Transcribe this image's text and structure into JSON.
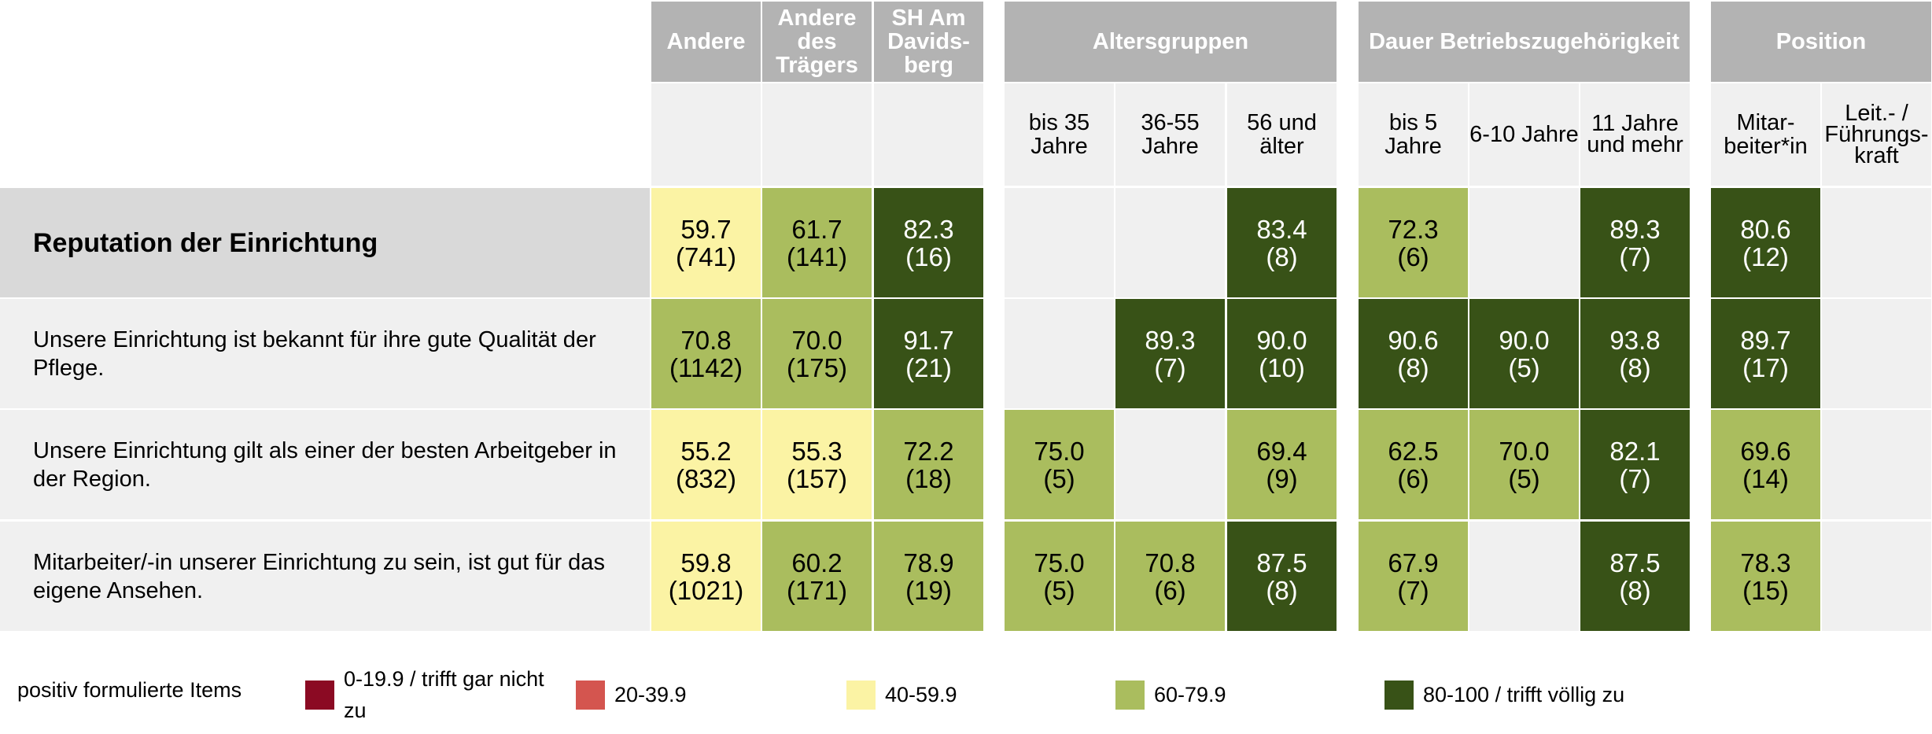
{
  "chart_data": {
    "type": "table",
    "column_groups": [
      {
        "label": "Andere",
        "columns": [
          {
            "label": ""
          }
        ]
      },
      {
        "label": "Andere des Trägers",
        "columns": [
          {
            "label": ""
          }
        ]
      },
      {
        "label": "SH Am Davids- berg",
        "columns": [
          {
            "label": ""
          }
        ]
      },
      {
        "label": "Altersgruppen",
        "columns": [
          {
            "label": "bis 35 Jahre"
          },
          {
            "label": "36-55 Jahre"
          },
          {
            "label": "56 und älter"
          }
        ]
      },
      {
        "label": "Dauer Betriebszugehörigkeit",
        "columns": [
          {
            "label": "bis 5 Jahre"
          },
          {
            "label": "6-10 Jahre"
          },
          {
            "label": "11 Jahre und mehr"
          }
        ]
      },
      {
        "label": "Position",
        "columns": [
          {
            "label": "Mitar- beiter*in"
          },
          {
            "label": "Leit.- / Führungs- kraft"
          }
        ]
      }
    ],
    "rows": [
      {
        "label": "Reputation der Einrichtung",
        "bold": true,
        "values": [
          59.7,
          61.7,
          82.3,
          null,
          null,
          83.4,
          72.3,
          null,
          89.3,
          80.6,
          null
        ],
        "counts": [
          741,
          141,
          16,
          null,
          null,
          8,
          6,
          null,
          7,
          12,
          null
        ]
      },
      {
        "label": "Unsere Einrichtung ist bekannt für ihre gute Qualität der Pflege.",
        "bold": false,
        "values": [
          70.8,
          70.0,
          91.7,
          null,
          89.3,
          90.0,
          90.6,
          90.0,
          93.8,
          89.7,
          null
        ],
        "counts": [
          1142,
          175,
          21,
          null,
          7,
          10,
          8,
          5,
          8,
          17,
          null
        ]
      },
      {
        "label": "Unsere Einrichtung gilt als einer der besten Arbeitgeber in der Region.",
        "bold": false,
        "values": [
          55.2,
          55.3,
          72.2,
          75.0,
          null,
          69.4,
          62.5,
          70.0,
          82.1,
          69.6,
          null
        ],
        "counts": [
          832,
          157,
          18,
          5,
          null,
          9,
          6,
          5,
          7,
          14,
          null
        ]
      },
      {
        "label": "Mitarbeiter/-in unserer Einrichtung zu sein, ist gut für das eigene Ansehen.",
        "bold": false,
        "values": [
          59.8,
          60.2,
          78.9,
          75.0,
          70.8,
          87.5,
          67.9,
          null,
          87.5,
          78.3,
          null
        ],
        "counts": [
          1021,
          171,
          19,
          5,
          6,
          8,
          7,
          null,
          8,
          15,
          null
        ]
      }
    ],
    "legend_title": "positiv formulierte Items",
    "legend": [
      {
        "label": "0-19.9 / trifft gar nicht zu",
        "min": 0,
        "max": 19.9,
        "color": "#8b0a23"
      },
      {
        "label": "20-39.9",
        "min": 20,
        "max": 39.9,
        "color": "#d4554f"
      },
      {
        "label": "40-59.9",
        "min": 40,
        "max": 59.9,
        "color": "#fbf3a4"
      },
      {
        "label": "60-79.9",
        "min": 60,
        "max": 79.9,
        "color": "#aabd5e"
      },
      {
        "label": "80-100 / trifft völlig zu",
        "min": 80,
        "max": 100,
        "color": "#385217"
      }
    ]
  }
}
